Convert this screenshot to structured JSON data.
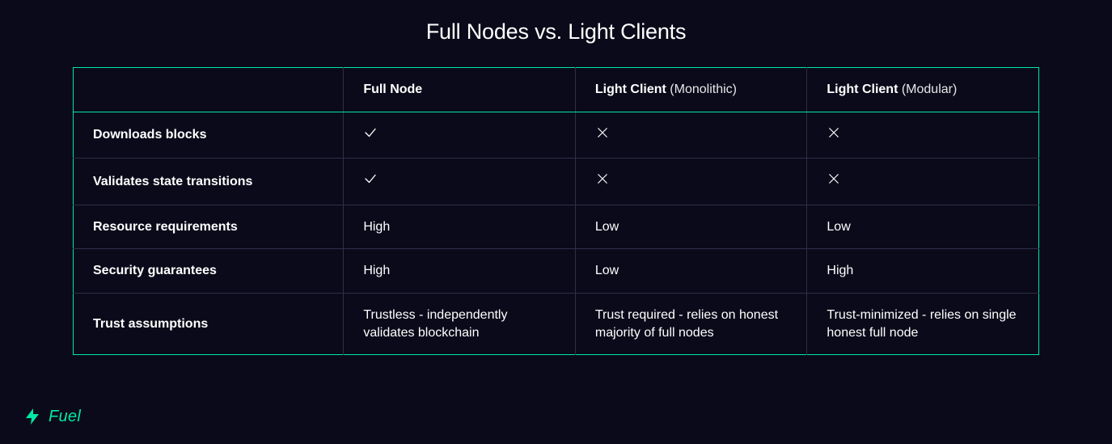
{
  "colors": {
    "background": "#0a0a1a",
    "text": "#ffffff",
    "accent": "#00e8a2",
    "separator": "#2e2e4a"
  },
  "typography": {
    "title_fontsize": 27,
    "cell_fontsize": 16,
    "footer_fontsize": 20
  },
  "title": "Full Nodes vs. Light Clients",
  "table": {
    "columns": [
      {
        "label": "",
        "sub": ""
      },
      {
        "label": "Full Node",
        "sub": ""
      },
      {
        "label": "Light Client",
        "sub": "(Monolithic)"
      },
      {
        "label": "Light Client",
        "sub": "(Modular)"
      }
    ],
    "rows": [
      {
        "label": "Downloads blocks",
        "cells": [
          {
            "icon": "check"
          },
          {
            "icon": "x"
          },
          {
            "icon": "x"
          }
        ]
      },
      {
        "label": "Validates state transitions",
        "cells": [
          {
            "icon": "check"
          },
          {
            "icon": "x"
          },
          {
            "icon": "x"
          }
        ]
      },
      {
        "label": "Resource requirements",
        "cells": [
          {
            "text": "High"
          },
          {
            "text": "Low"
          },
          {
            "text": "Low"
          }
        ]
      },
      {
        "label": "Security guarantees",
        "cells": [
          {
            "text": "High"
          },
          {
            "text": "Low"
          },
          {
            "text": "High"
          }
        ]
      },
      {
        "label": "Trust assumptions",
        "cells": [
          {
            "text": "Trustless - independently validates blockchain"
          },
          {
            "text": "Trust required - relies on honest majority of full nodes"
          },
          {
            "text": "Trust-minimized - relies on single honest full node"
          }
        ]
      }
    ]
  },
  "footer": {
    "brand": "Fuel"
  }
}
